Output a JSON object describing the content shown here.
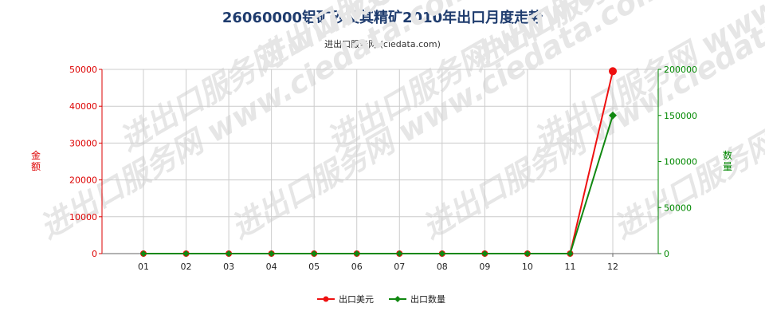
{
  "chart_data": {
    "type": "line",
    "title": "26060000铝矿砂及其精矿2010年出口月度走势",
    "subtitle": "进出口服务网 (ciedata.com)",
    "categories": [
      "01",
      "02",
      "03",
      "04",
      "05",
      "06",
      "07",
      "08",
      "09",
      "10",
      "11",
      "12"
    ],
    "y_left": {
      "label": "金额",
      "range": [
        0,
        50000
      ],
      "ticks": [
        "0",
        "10000",
        "20000",
        "30000",
        "40000",
        "50000"
      ]
    },
    "y_right": {
      "label": "数量",
      "range": [
        0,
        200000
      ],
      "ticks": [
        "0",
        "50000",
        "100000",
        "150000",
        "200000"
      ]
    },
    "series": [
      {
        "name": "出口美元",
        "axis": "left",
        "color": "#ee1111",
        "values": [
          0,
          0,
          0,
          0,
          0,
          0,
          0,
          0,
          0,
          0,
          0,
          49500
        ]
      },
      {
        "name": "出口数量",
        "axis": "right",
        "color": "#118811",
        "values": [
          0,
          0,
          0,
          0,
          0,
          0,
          0,
          0,
          0,
          0,
          0,
          150000
        ]
      }
    ],
    "grid": true,
    "legend": "bottom-center",
    "watermark": "进出口服务网 www.ciedata.com"
  }
}
